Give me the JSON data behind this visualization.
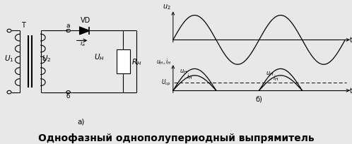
{
  "title": "Однофазный однополупериодный выпрямитель",
  "title_fontsize": 10,
  "bg_color": "#e8e8e8",
  "line_color": "#000000",
  "label_a": "а)",
  "label_b": "б)",
  "label_T": "T",
  "label_U1": "U",
  "label_U2": "U",
  "label_VD": "VD",
  "label_ia": "i",
  "label_a_pt": "a",
  "label_b_pt": "б",
  "label_UH": "U",
  "label_RH": "R",
  "label_u2": "u",
  "label_uH": "u",
  "label_iH": "i",
  "label_Ucp": "U",
  "label_t": "t"
}
